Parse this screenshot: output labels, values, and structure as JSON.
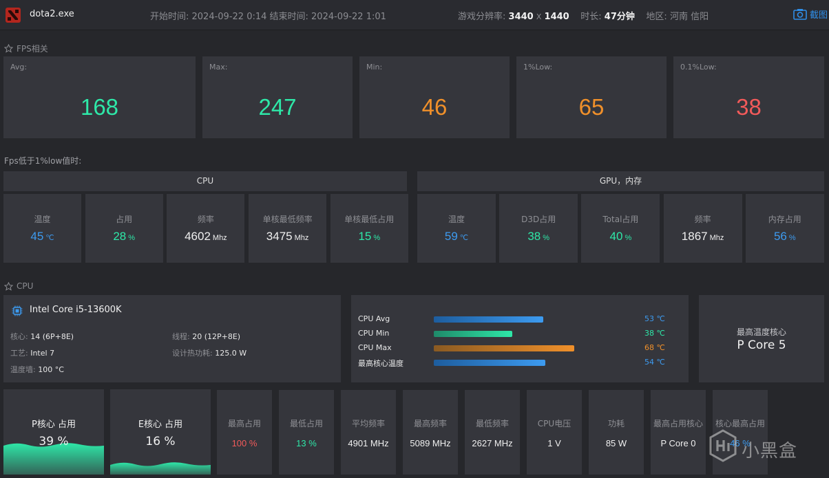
{
  "topbar": {
    "app_name": "dota2.exe",
    "time_range": "开始时间: 2024-09-22 0:14 结束时间: 2024-09-22 1:01",
    "resolution_label": "游戏分辨率:",
    "res_w": "3440",
    "res_x": "X",
    "res_h": "1440",
    "duration_label": "时长:",
    "duration": "47分钟",
    "region_label": "地区:",
    "region": "河南 信阳",
    "screenshot_label": "截图"
  },
  "fps_section": {
    "title": "FPS相关",
    "cards": [
      {
        "label": "Avg:",
        "value": "168",
        "color": "#2ee8a8"
      },
      {
        "label": "Max:",
        "value": "247",
        "color": "#2ee8a8"
      },
      {
        "label": "Min:",
        "value": "46",
        "color": "#f0902a"
      },
      {
        "label": "1%Low:",
        "value": "65",
        "color": "#f0902a"
      },
      {
        "label": "0.1%Low:",
        "value": "38",
        "color": "#f25a5a"
      }
    ]
  },
  "low_section": {
    "title": "Fps低于1%low值时:",
    "cpu_head": "CPU",
    "gpu_head": "GPU，内存",
    "cpu_cards": [
      {
        "label": "温度",
        "value": "45",
        "unit": "℃",
        "color": "#3d9bf0"
      },
      {
        "label": "占用",
        "value": "28",
        "unit": "%",
        "color": "#2ee8a8"
      },
      {
        "label": "频率",
        "value": "4602",
        "unit": "Mhz",
        "color": "#f0f0f0"
      },
      {
        "label": "单核最低频率",
        "value": "3475",
        "unit": "Mhz",
        "color": "#f0f0f0"
      },
      {
        "label": "单核最低占用",
        "value": "15",
        "unit": "%",
        "color": "#2ee8a8"
      }
    ],
    "gpu_cards": [
      {
        "label": "温度",
        "value": "59",
        "unit": "℃",
        "color": "#3d9bf0"
      },
      {
        "label": "D3D占用",
        "value": "38",
        "unit": "%",
        "color": "#2ee8a8"
      },
      {
        "label": "Total占用",
        "value": "40",
        "unit": "%",
        "color": "#2ee8a8"
      },
      {
        "label": "频率",
        "value": "1867",
        "unit": "Mhz",
        "color": "#f0f0f0"
      },
      {
        "label": "内存占用",
        "value": "56",
        "unit": "%",
        "color": "#3d9bf0"
      }
    ]
  },
  "cpu_section": {
    "title": "CPU",
    "info": {
      "name": "Intel Core i5-13600K",
      "cores_label": "核心:",
      "cores": "14 (6P+8E)",
      "threads_label": "线程:",
      "threads": "20 (12P+8E)",
      "process_label": "工艺:",
      "process": "Intel 7",
      "tdp_label": "设计热功耗:",
      "tdp": "125.0 W",
      "tjmax_label": "温度墙:",
      "tjmax": "100 °C"
    },
    "temps": [
      {
        "label": "CPU Avg",
        "value": "53 ℃",
        "level": 0.53,
        "color": "#3d9bf0",
        "grad_from": "#1d5d9e"
      },
      {
        "label": "CPU Min",
        "value": "38 ℃",
        "level": 0.38,
        "color": "#2ee8a8",
        "grad_from": "#1f8a6a"
      },
      {
        "label": "CPU Max",
        "value": "68 ℃",
        "level": 0.68,
        "color": "#f0902a",
        "grad_from": "#8a5a22"
      },
      {
        "label": "最高核心温度",
        "value": "54 ℃",
        "level": 0.54,
        "color": "#3d9bf0",
        "grad_from": "#1d5d9e"
      }
    ],
    "hot_core": {
      "label": "最高温度核心",
      "value": "P Core 5"
    },
    "p_core": {
      "label": "P核心 占用",
      "value": "39 %",
      "level": 0.39
    },
    "e_core": {
      "label": "E核心 占用",
      "value": "16 %",
      "level": 0.16
    },
    "stats": [
      {
        "label": "最高占用",
        "value": "100 %",
        "color": "#f25a5a"
      },
      {
        "label": "最低占用",
        "value": "13 %",
        "color": "#2ee8a8"
      },
      {
        "label": "平均频率",
        "value": "4901 MHz",
        "color": "#f0f0f0"
      },
      {
        "label": "最高频率",
        "value": "5089 MHz",
        "color": "#f0f0f0"
      },
      {
        "label": "最低频率",
        "value": "2627 MHz",
        "color": "#f0f0f0"
      },
      {
        "label": "CPU电压",
        "value": "1 V",
        "color": "#f0f0f0"
      },
      {
        "label": "功耗",
        "value": "85 W",
        "color": "#f0f0f0"
      },
      {
        "label": "最高占用核心",
        "value": "P Core 0",
        "color": "#f0f0f0"
      },
      {
        "label": "核心最高占用",
        "value": "46 %",
        "color": "#3d9bf0"
      }
    ]
  },
  "watermark": {
    "text": "小黑盒"
  }
}
